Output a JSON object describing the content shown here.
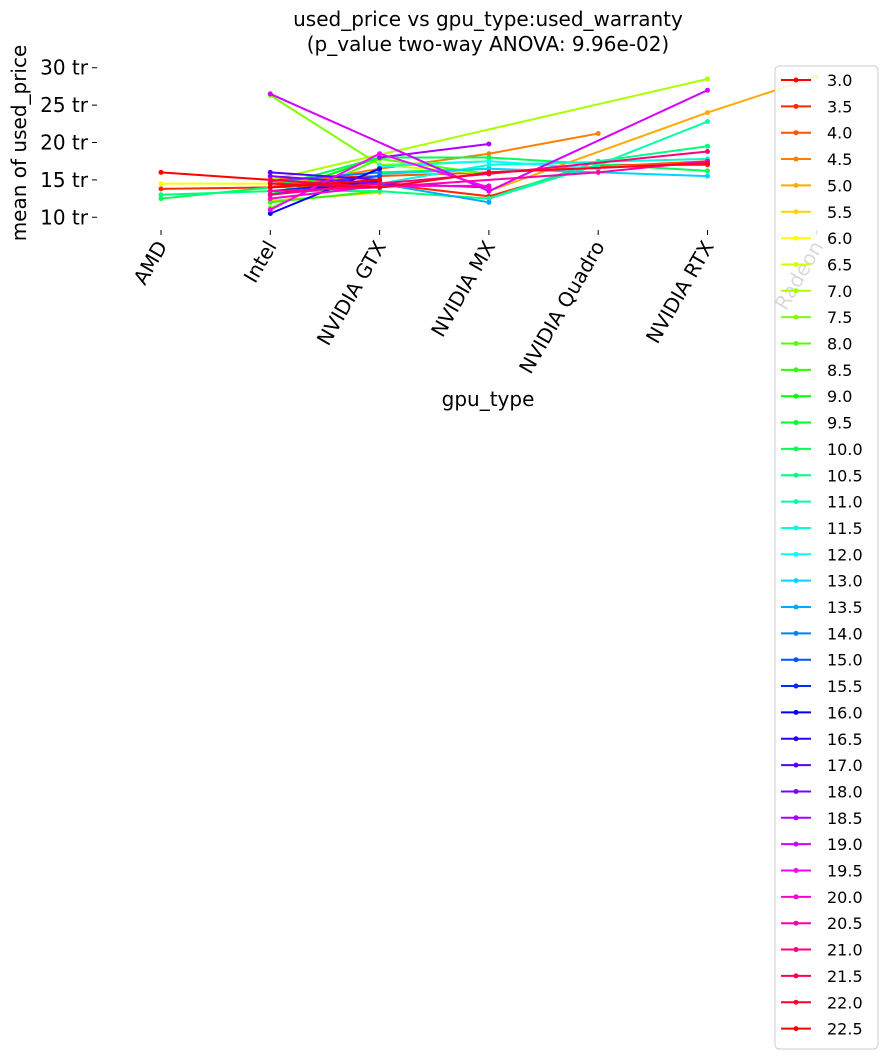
{
  "chart_data": {
    "type": "line",
    "title_line1": "used_price vs gpu_type:used_warranty",
    "title_line2": "(p_value two-way ANOVA: 9.96e-02)",
    "xlabel": "gpu_type",
    "ylabel": "mean of used_price",
    "categories": [
      "AMD",
      "Intel",
      "NVIDIA GTX",
      "NVIDIA MX",
      "NVIDIA Quadro",
      "NVIDIA RTX",
      "Radeon"
    ],
    "ylim": [
      9.5,
      30.5
    ],
    "yticks": [
      10,
      15,
      20,
      25,
      30
    ],
    "ytick_labels": [
      "10 tr",
      "15 tr",
      "20 tr",
      "25 tr",
      "30 tr"
    ],
    "grid": false,
    "legend_position": "right",
    "series": [
      {
        "name": "3.0",
        "color": "#ff0000",
        "points": [
          [
            0,
            16.0
          ],
          [
            1,
            15.0
          ],
          [
            2,
            15.5
          ]
        ]
      },
      {
        "name": "3.5",
        "color": "#ff2a00",
        "points": [
          [
            0,
            13.8
          ],
          [
            1,
            14.0
          ],
          [
            2,
            14.5
          ],
          [
            3,
            12.8
          ],
          [
            4,
            17.0
          ],
          [
            5,
            17.0
          ]
        ]
      },
      {
        "name": "4.0",
        "color": "#ff5500",
        "points": [
          [
            1,
            14.5
          ],
          [
            2,
            15.5
          ],
          [
            3,
            16.0
          ],
          [
            5,
            17.5
          ]
        ]
      },
      {
        "name": "4.5",
        "color": "#ff8000",
        "points": [
          [
            1,
            14.0
          ],
          [
            2,
            16.5
          ],
          [
            3,
            18.5
          ],
          [
            4,
            21.2
          ]
        ]
      },
      {
        "name": "5.0",
        "color": "#ffaa00",
        "points": [
          [
            3,
            13.5
          ],
          [
            5,
            24.0
          ],
          [
            6,
            28.8
          ]
        ]
      },
      {
        "name": "5.5",
        "color": "#ffd400",
        "points": [
          [
            1,
            12.2
          ],
          [
            2,
            13.3
          ]
        ]
      },
      {
        "name": "6.0",
        "color": "#ffff00",
        "points": [
          [
            0,
            14.5
          ],
          [
            1,
            14.5
          ]
        ]
      },
      {
        "name": "6.5",
        "color": "#d4ff00",
        "points": [
          [
            2,
            17.0
          ],
          [
            3,
            15.8
          ]
        ]
      },
      {
        "name": "7.0",
        "color": "#aaff00",
        "points": [
          [
            1,
            15.0
          ],
          [
            5,
            28.5
          ]
        ]
      },
      {
        "name": "7.5",
        "color": "#80ff00",
        "points": [
          [
            1,
            26.3
          ],
          [
            2,
            17.0
          ],
          [
            3,
            17.5
          ]
        ]
      },
      {
        "name": "8.0",
        "color": "#55ff00",
        "points": [
          [
            1,
            11.2
          ],
          [
            2,
            17.8
          ],
          [
            3,
            15.8
          ]
        ]
      },
      {
        "name": "8.5",
        "color": "#2bff00",
        "points": [
          [
            1,
            12.0
          ],
          [
            2,
            13.5
          ]
        ]
      },
      {
        "name": "9.0",
        "color": "#00ff00",
        "points": [
          [
            1,
            13.0
          ],
          [
            2,
            18.0
          ]
        ]
      },
      {
        "name": "9.5",
        "color": "#00ff2a",
        "points": [
          [
            2,
            16.0
          ],
          [
            3,
            16.5
          ]
        ]
      },
      {
        "name": "10.0",
        "color": "#00ff55",
        "points": [
          [
            0,
            12.5
          ],
          [
            1,
            14.0
          ],
          [
            2,
            18.0
          ],
          [
            3,
            18.0
          ],
          [
            5,
            16.2
          ]
        ]
      },
      {
        "name": "10.5",
        "color": "#00ff80",
        "points": [
          [
            0,
            13.0
          ],
          [
            1,
            13.5
          ],
          [
            2,
            13.5
          ],
          [
            3,
            12.5
          ],
          [
            4,
            17.5
          ],
          [
            5,
            19.5
          ]
        ]
      },
      {
        "name": "11.0",
        "color": "#00ffaa",
        "points": [
          [
            3,
            12.5
          ],
          [
            4,
            17.0
          ],
          [
            5,
            22.8
          ]
        ]
      },
      {
        "name": "11.5",
        "color": "#00ffd4",
        "points": [
          [
            2,
            14.5
          ],
          [
            3,
            17.0
          ],
          [
            5,
            17.8
          ]
        ]
      },
      {
        "name": "12.0",
        "color": "#00ffff",
        "points": [
          [
            2,
            16.8
          ],
          [
            3,
            17.5
          ],
          [
            4,
            16.5
          ]
        ]
      },
      {
        "name": "13.0",
        "color": "#00d4ff",
        "points": [
          [
            2,
            15.8
          ],
          [
            3,
            16.5
          ],
          [
            5,
            15.5
          ]
        ]
      },
      {
        "name": "13.5",
        "color": "#00aaff",
        "points": [
          [
            2,
            14.5
          ],
          [
            3,
            12.0
          ]
        ]
      },
      {
        "name": "14.0",
        "color": "#0080ff",
        "points": [
          [
            1,
            14.8
          ],
          [
            2,
            16.0
          ]
        ]
      },
      {
        "name": "15.0",
        "color": "#0055ff",
        "points": [
          [
            1,
            14.0
          ],
          [
            2,
            15.5
          ]
        ]
      },
      {
        "name": "15.5",
        "color": "#002bff",
        "points": [
          [
            1,
            13.5
          ],
          [
            2,
            14.8
          ]
        ]
      },
      {
        "name": "16.0",
        "color": "#0000ff",
        "points": [
          [
            1,
            10.5
          ],
          [
            2,
            16.5
          ]
        ]
      },
      {
        "name": "16.5",
        "color": "#2a00ff",
        "points": [
          [
            1,
            13.0
          ],
          [
            2,
            15.0
          ]
        ]
      },
      {
        "name": "17.0",
        "color": "#5500ff",
        "points": [
          [
            1,
            16.0
          ],
          [
            2,
            15.0
          ]
        ]
      },
      {
        "name": "18.0",
        "color": "#8000ff",
        "points": [
          [
            1,
            15.5
          ],
          [
            2,
            14.5
          ],
          [
            3,
            14.0
          ]
        ]
      },
      {
        "name": "18.5",
        "color": "#aa00ff",
        "points": [
          [
            2,
            18.0
          ],
          [
            3,
            19.8
          ]
        ]
      },
      {
        "name": "19.0",
        "color": "#d400ff",
        "points": [
          [
            1,
            26.5
          ],
          [
            3,
            13.5
          ],
          [
            5,
            27.0
          ]
        ]
      },
      {
        "name": "19.5",
        "color": "#ff00ff",
        "points": [
          [
            1,
            11.0
          ],
          [
            2,
            18.5
          ],
          [
            3,
            14.0
          ]
        ]
      },
      {
        "name": "20.0",
        "color": "#ff00d4",
        "points": [
          [
            1,
            12.5
          ],
          [
            2,
            14.2
          ],
          [
            3,
            14.2
          ]
        ]
      },
      {
        "name": "20.5",
        "color": "#ff00aa",
        "points": [
          [
            1,
            13.5
          ],
          [
            2,
            14.0
          ],
          [
            4,
            16.0
          ],
          [
            5,
            17.5
          ]
        ]
      },
      {
        "name": "21.0",
        "color": "#ff0080",
        "points": [
          [
            1,
            13.0
          ],
          [
            2,
            14.5
          ],
          [
            3,
            15.8
          ],
          [
            5,
            18.8
          ]
        ]
      },
      {
        "name": "21.5",
        "color": "#ff0055",
        "points": [
          [
            1,
            15.0
          ],
          [
            2,
            14.0
          ]
        ]
      },
      {
        "name": "22.0",
        "color": "#ff002a",
        "points": [
          [
            1,
            14.5
          ],
          [
            2,
            14.0
          ],
          [
            3,
            16.0
          ],
          [
            5,
            17.2
          ]
        ]
      },
      {
        "name": "22.5",
        "color": "#ff0000",
        "points": [
          [
            1,
            14.0
          ],
          [
            2,
            15.0
          ]
        ]
      }
    ]
  }
}
